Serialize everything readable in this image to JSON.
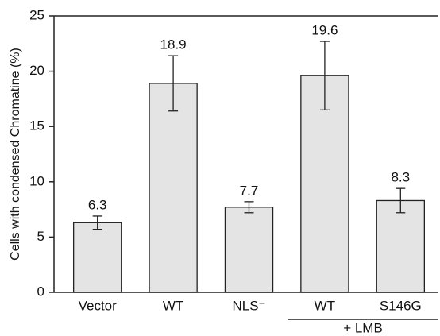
{
  "chart_data": {
    "type": "bar",
    "y_label": "Cells with condensed Chromatine  (%)",
    "categories": [
      "Vector",
      "WT",
      "NLS⁻",
      "WT",
      "S146G"
    ],
    "values": [
      6.3,
      18.9,
      7.7,
      19.6,
      8.3
    ],
    "errors": [
      0.6,
      2.5,
      0.5,
      3.1,
      1.1
    ],
    "color": "#e4e4e4",
    "group_label": "+ LMB",
    "ylim": [
      0,
      25
    ],
    "yticks": [
      0,
      5,
      10,
      15,
      20,
      25
    ],
    "grid": false
  }
}
